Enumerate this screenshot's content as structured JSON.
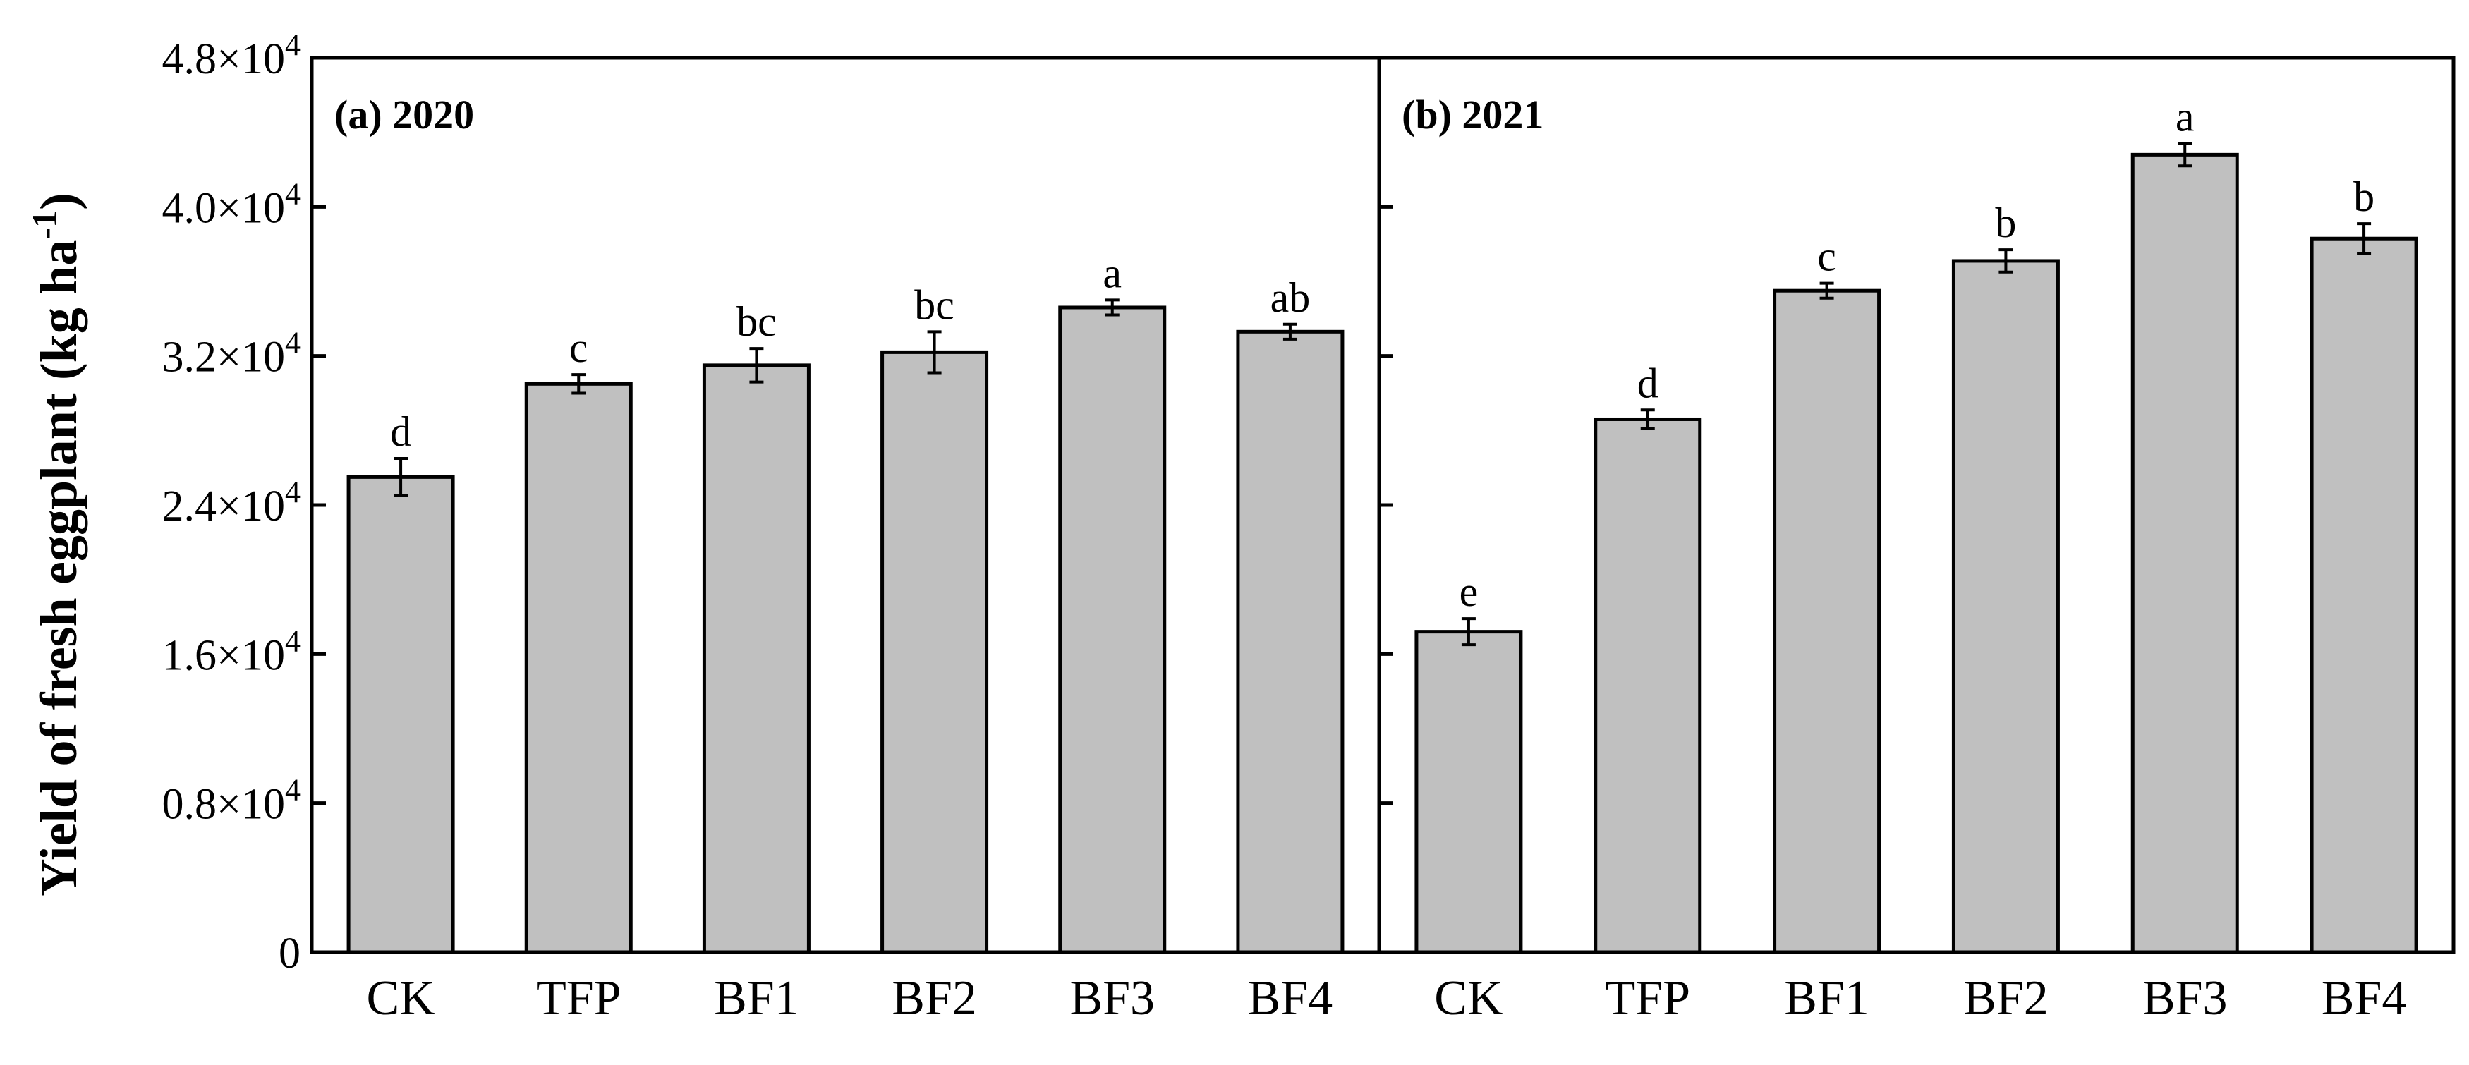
{
  "chart_data": {
    "type": "bar",
    "y_axis": {
      "title": "Yield of fresh eggplant (kg ha",
      "title_superscript": "-1",
      "title_close": ")",
      "ylim": [
        0,
        48000
      ],
      "ticks": [
        {
          "value": 0,
          "mantissa": "0",
          "exponent": ""
        },
        {
          "value": 8000,
          "mantissa": "0.8×10",
          "exponent": "4"
        },
        {
          "value": 16000,
          "mantissa": "1.6×10",
          "exponent": "4"
        },
        {
          "value": 24000,
          "mantissa": "2.4×10",
          "exponent": "4"
        },
        {
          "value": 32000,
          "mantissa": "3.2×10",
          "exponent": "4"
        },
        {
          "value": 40000,
          "mantissa": "4.0×10",
          "exponent": "4"
        },
        {
          "value": 48000,
          "mantissa": "4.8×10",
          "exponent": "4"
        }
      ]
    },
    "categories": [
      "CK",
      "TFP",
      "BF1",
      "BF2",
      "BF3",
      "BF4"
    ],
    "panels": [
      {
        "title": "(a) 2020",
        "values": [
          25500,
          30500,
          31500,
          32200,
          34600,
          33300
        ],
        "errors": [
          1000,
          500,
          900,
          1100,
          400,
          400
        ],
        "letters": [
          "d",
          "c",
          "bc",
          "bc",
          "a",
          "ab"
        ]
      },
      {
        "title": "(b) 2021",
        "values": [
          17200,
          28600,
          35500,
          37100,
          42800,
          38300
        ],
        "errors": [
          700,
          500,
          400,
          600,
          600,
          800
        ],
        "letters": [
          "e",
          "d",
          "c",
          "b",
          "a",
          "b"
        ]
      }
    ]
  }
}
